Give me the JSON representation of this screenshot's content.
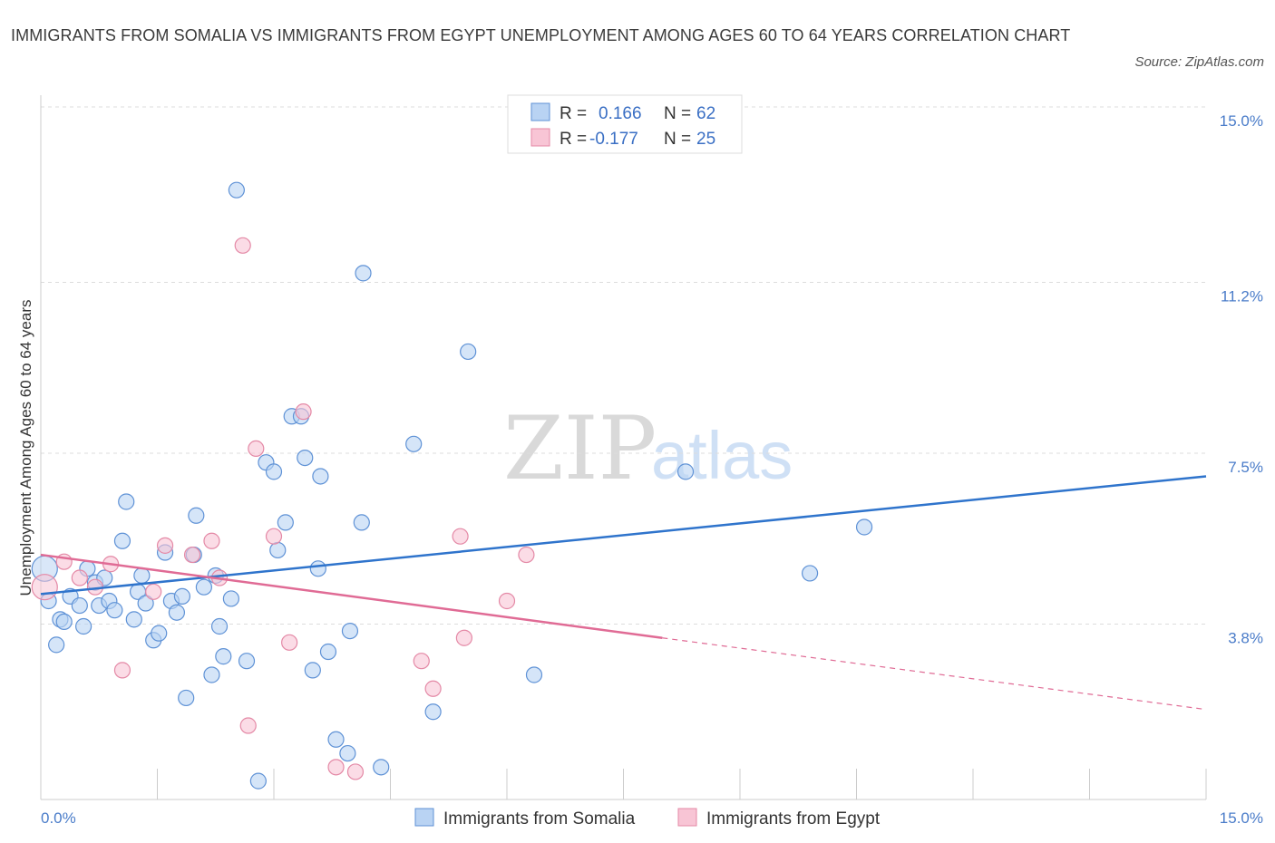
{
  "title": "IMMIGRANTS FROM SOMALIA VS IMMIGRANTS FROM EGYPT UNEMPLOYMENT AMONG AGES 60 TO 64 YEARS CORRELATION CHART",
  "source": "Source: ZipAtlas.com",
  "watermark": {
    "zip": "ZIP",
    "atlas": "atlas"
  },
  "colors": {
    "somalia_fill": "#b9d3f3",
    "somalia_stroke": "#5f92d6",
    "somalia_line": "#2f74cc",
    "egypt_fill": "#f8c5d5",
    "egypt_stroke": "#e489a6",
    "egypt_line": "#e06b95",
    "tick": "#4a7cc9",
    "grid": "#dddddd"
  },
  "legend": {
    "rows": [
      {
        "r_label": "R = ",
        "r_value": "0.166",
        "n_label": "N = ",
        "n_value": "62"
      },
      {
        "r_label": "R = ",
        "r_value": "-0.177",
        "n_label": "N = ",
        "n_value": "25"
      }
    ]
  },
  "chart_data": {
    "type": "scatter",
    "xlim": [
      0,
      15
    ],
    "ylim": [
      0,
      15
    ],
    "x_tick_labels": {
      "left": "0.0%",
      "right": "15.0%"
    },
    "y_ticks": [
      {
        "value": 3.8,
        "label": "3.8%"
      },
      {
        "value": 7.5,
        "label": "7.5%"
      },
      {
        "value": 11.2,
        "label": "11.2%"
      },
      {
        "value": 15.0,
        "label": "15.0%"
      }
    ],
    "ylabel": "Unemployment Among Ages 60 to 64 years",
    "grid": true,
    "series": [
      {
        "name": "Immigrants from Somalia",
        "r": 0.166,
        "n": 62,
        "trend": {
          "x0": 0,
          "y0": 4.45,
          "x1": 15,
          "y1": 7.0
        },
        "points": [
          [
            0.05,
            5.0
          ],
          [
            0.1,
            4.3
          ],
          [
            0.2,
            3.35
          ],
          [
            0.25,
            3.9
          ],
          [
            0.3,
            3.85
          ],
          [
            0.38,
            4.4
          ],
          [
            0.5,
            4.2
          ],
          [
            0.55,
            3.75
          ],
          [
            0.6,
            5.0
          ],
          [
            0.7,
            4.7
          ],
          [
            0.75,
            4.2
          ],
          [
            0.82,
            4.8
          ],
          [
            0.88,
            4.3
          ],
          [
            0.95,
            4.1
          ],
          [
            1.05,
            5.6
          ],
          [
            1.1,
            6.45
          ],
          [
            1.2,
            3.9
          ],
          [
            1.25,
            4.5
          ],
          [
            1.3,
            4.85
          ],
          [
            1.35,
            4.25
          ],
          [
            1.45,
            3.45
          ],
          [
            1.52,
            3.6
          ],
          [
            1.6,
            5.35
          ],
          [
            1.68,
            4.3
          ],
          [
            1.75,
            4.05
          ],
          [
            1.82,
            4.4
          ],
          [
            1.87,
            2.2
          ],
          [
            1.97,
            5.3
          ],
          [
            2.0,
            6.15
          ],
          [
            2.1,
            4.6
          ],
          [
            2.2,
            2.7
          ],
          [
            2.25,
            4.85
          ],
          [
            2.3,
            3.75
          ],
          [
            2.35,
            3.1
          ],
          [
            2.45,
            4.35
          ],
          [
            2.52,
            13.2
          ],
          [
            2.65,
            3.0
          ],
          [
            2.8,
            0.4
          ],
          [
            2.9,
            7.3
          ],
          [
            3.0,
            7.1
          ],
          [
            3.05,
            5.4
          ],
          [
            3.15,
            6.0
          ],
          [
            3.23,
            8.3
          ],
          [
            3.35,
            8.3
          ],
          [
            3.4,
            7.4
          ],
          [
            3.5,
            2.8
          ],
          [
            3.57,
            5.0
          ],
          [
            3.6,
            7.0
          ],
          [
            3.7,
            3.2
          ],
          [
            3.8,
            1.3
          ],
          [
            3.95,
            1.0
          ],
          [
            3.98,
            3.65
          ],
          [
            4.13,
            6.0
          ],
          [
            4.15,
            11.4
          ],
          [
            4.38,
            0.7
          ],
          [
            4.8,
            7.7
          ],
          [
            5.05,
            1.9
          ],
          [
            5.5,
            9.7
          ],
          [
            6.35,
            2.7
          ],
          [
            8.3,
            7.1
          ],
          [
            9.9,
            4.9
          ],
          [
            10.6,
            5.9
          ]
        ]
      },
      {
        "name": "Immigrants from Egypt",
        "r": -0.177,
        "n": 25,
        "trend": {
          "x0": 0,
          "y0": 5.3,
          "x1": 8.0,
          "y1": 3.5,
          "dash_to_x": 15,
          "dash_to_y": 1.95
        },
        "points": [
          [
            0.05,
            4.6
          ],
          [
            0.3,
            5.15
          ],
          [
            0.5,
            4.8
          ],
          [
            0.7,
            4.6
          ],
          [
            0.9,
            5.1
          ],
          [
            1.05,
            2.8
          ],
          [
            1.45,
            4.5
          ],
          [
            1.6,
            5.5
          ],
          [
            1.95,
            5.3
          ],
          [
            2.2,
            5.6
          ],
          [
            2.3,
            4.8
          ],
          [
            2.6,
            12.0
          ],
          [
            2.67,
            1.6
          ],
          [
            2.77,
            7.6
          ],
          [
            3.0,
            5.7
          ],
          [
            3.2,
            3.4
          ],
          [
            3.38,
            8.4
          ],
          [
            3.8,
            0.7
          ],
          [
            4.05,
            0.6
          ],
          [
            4.9,
            3.0
          ],
          [
            5.05,
            2.4
          ],
          [
            5.4,
            5.7
          ],
          [
            5.45,
            3.5
          ],
          [
            6.0,
            4.3
          ],
          [
            6.25,
            5.3
          ]
        ]
      }
    ]
  }
}
